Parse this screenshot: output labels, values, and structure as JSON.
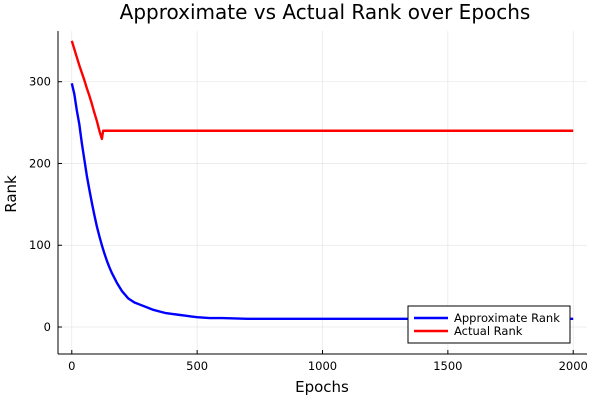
{
  "chart_data": {
    "type": "line",
    "title": "Approximate vs Actual Rank over Epochs",
    "xlabel": "Epochs",
    "ylabel": "Rank",
    "xlim": [
      -55,
      2055
    ],
    "ylim": [
      -33,
      362
    ],
    "xticks": [
      0,
      500,
      1000,
      1500,
      2000
    ],
    "yticks": [
      0,
      100,
      200,
      300
    ],
    "grid": true,
    "legend": "bottom-right",
    "series": [
      {
        "name": "Approximate Rank",
        "color": "#0000ff",
        "points": [
          [
            0,
            298
          ],
          [
            10,
            285
          ],
          [
            20,
            265
          ],
          [
            30,
            248
          ],
          [
            40,
            225
          ],
          [
            50,
            205
          ],
          [
            60,
            185
          ],
          [
            70,
            168
          ],
          [
            80,
            152
          ],
          [
            90,
            137
          ],
          [
            100,
            123
          ],
          [
            110,
            111
          ],
          [
            120,
            100
          ],
          [
            130,
            90
          ],
          [
            140,
            81
          ],
          [
            150,
            73
          ],
          [
            160,
            66
          ],
          [
            170,
            60
          ],
          [
            180,
            54
          ],
          [
            190,
            49
          ],
          [
            200,
            44
          ],
          [
            225,
            35
          ],
          [
            250,
            30
          ],
          [
            275,
            27
          ],
          [
            300,
            24
          ],
          [
            325,
            21
          ],
          [
            350,
            19
          ],
          [
            375,
            17
          ],
          [
            400,
            16
          ],
          [
            425,
            15
          ],
          [
            450,
            14
          ],
          [
            475,
            13
          ],
          [
            500,
            12
          ],
          [
            550,
            11
          ],
          [
            600,
            11
          ],
          [
            700,
            10
          ],
          [
            800,
            10
          ],
          [
            900,
            10
          ],
          [
            1000,
            10
          ],
          [
            1100,
            10
          ],
          [
            1200,
            10
          ],
          [
            1300,
            10
          ],
          [
            1400,
            10
          ],
          [
            1500,
            10
          ],
          [
            1600,
            10
          ],
          [
            1700,
            10
          ],
          [
            1800,
            10
          ],
          [
            1900,
            10
          ],
          [
            2000,
            10
          ]
        ]
      },
      {
        "name": "Actual Rank",
        "color": "#ff0000",
        "points": [
          [
            0,
            350
          ],
          [
            10,
            340
          ],
          [
            20,
            330
          ],
          [
            30,
            320
          ],
          [
            40,
            311
          ],
          [
            50,
            302
          ],
          [
            60,
            292
          ],
          [
            70,
            283
          ],
          [
            80,
            273
          ],
          [
            90,
            262
          ],
          [
            100,
            252
          ],
          [
            110,
            240
          ],
          [
            120,
            230
          ],
          [
            125,
            240
          ],
          [
            150,
            240
          ],
          [
            200,
            240
          ],
          [
            300,
            240
          ],
          [
            400,
            240
          ],
          [
            500,
            240
          ],
          [
            600,
            240
          ],
          [
            700,
            240
          ],
          [
            800,
            240
          ],
          [
            900,
            240
          ],
          [
            1000,
            240
          ],
          [
            1100,
            240
          ],
          [
            1200,
            240
          ],
          [
            1300,
            240
          ],
          [
            1400,
            240
          ],
          [
            1500,
            240
          ],
          [
            1600,
            240
          ],
          [
            1700,
            240
          ],
          [
            1800,
            240
          ],
          [
            1900,
            240
          ],
          [
            2000,
            240
          ]
        ]
      }
    ]
  }
}
